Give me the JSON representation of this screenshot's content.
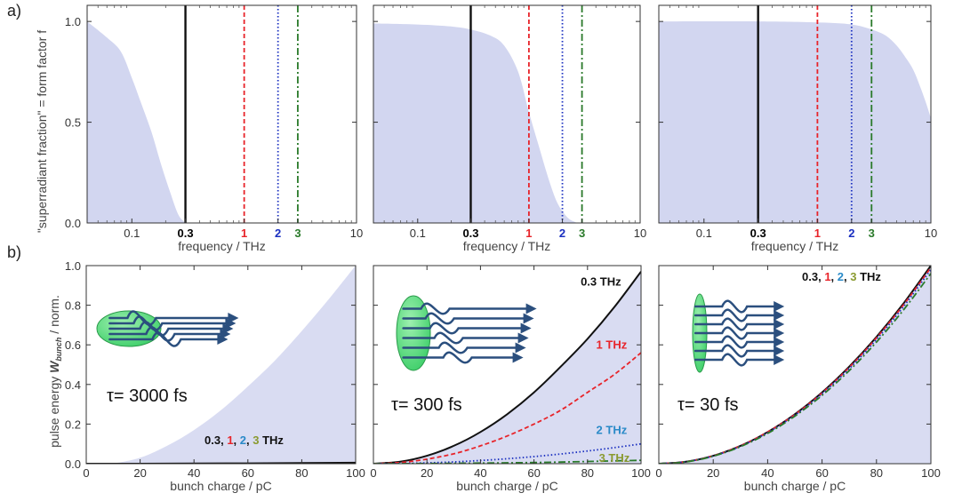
{
  "panel_labels": [
    "a)",
    "b)"
  ],
  "colors": {
    "fill": "#d2d6f0",
    "black": "#111111",
    "red": "#e8242a",
    "blue": "#1a2fc0",
    "green": "#2a7a2a",
    "text_blue": "#2a8ac8",
    "text_olive": "#8a9a30",
    "bunch": "#3fcf6a",
    "arrow": "#2b4f7e"
  },
  "chart_data": [
    {
      "id": "a1",
      "type": "area",
      "xlabel": "frequency / THz",
      "ylabel": "\"superradiant fraction\" = form factor f",
      "xscale": "log",
      "xlim": [
        0.04,
        10
      ],
      "ylim": [
        0,
        1.08
      ],
      "x_ticks": [
        "0.1",
        "0.3",
        "1",
        "2",
        "3",
        "10"
      ],
      "y_ticks": [
        "0.0",
        "0.5",
        "1.0"
      ],
      "form_factor": {
        "x": [
          0.04,
          0.06,
          0.08,
          0.1,
          0.12,
          0.15,
          0.18,
          0.22,
          0.26,
          0.3
        ],
        "y": [
          1.0,
          0.92,
          0.85,
          0.72,
          0.6,
          0.45,
          0.3,
          0.15,
          0.04,
          0.0
        ]
      },
      "vlines": [
        {
          "x": 0.3,
          "style": "solid",
          "color": "black"
        },
        {
          "x": 1,
          "style": "dashed",
          "color": "red"
        },
        {
          "x": 2,
          "style": "dotted",
          "color": "blue"
        },
        {
          "x": 3,
          "style": "dashdot",
          "color": "green"
        }
      ]
    },
    {
      "id": "a2",
      "type": "area",
      "xlabel": "frequency / THz",
      "xscale": "log",
      "xlim": [
        0.04,
        10
      ],
      "ylim": [
        0,
        1.08
      ],
      "x_ticks": [
        "0.1",
        "0.3",
        "1",
        "2",
        "3",
        "10"
      ],
      "form_factor": {
        "x": [
          0.04,
          0.1,
          0.2,
          0.3,
          0.45,
          0.6,
          0.8,
          1.0,
          1.2,
          1.5,
          1.8,
          2.2,
          2.6,
          3.0,
          10
        ],
        "y": [
          0.99,
          0.985,
          0.975,
          0.96,
          0.93,
          0.88,
          0.75,
          0.55,
          0.4,
          0.22,
          0.1,
          0.03,
          0.005,
          0.0,
          0.0
        ]
      },
      "vlines": [
        {
          "x": 0.3,
          "style": "solid",
          "color": "black"
        },
        {
          "x": 1,
          "style": "dashed",
          "color": "red"
        },
        {
          "x": 2,
          "style": "dotted",
          "color": "blue"
        },
        {
          "x": 3,
          "style": "dashdot",
          "color": "green"
        }
      ]
    },
    {
      "id": "a3",
      "type": "area",
      "xlabel": "frequency / THz",
      "xscale": "log",
      "xlim": [
        0.04,
        10
      ],
      "ylim": [
        0,
        1.08
      ],
      "x_ticks": [
        "0.1",
        "0.3",
        "1",
        "2",
        "3",
        "10"
      ],
      "form_factor": {
        "x": [
          0.04,
          0.3,
          1.0,
          2.0,
          3.0,
          4.0,
          5.0,
          6.0,
          7.0,
          8.0,
          9.0,
          10.0
        ],
        "y": [
          1.0,
          1.0,
          0.995,
          0.985,
          0.96,
          0.93,
          0.88,
          0.82,
          0.76,
          0.68,
          0.6,
          0.52
        ]
      },
      "vlines": [
        {
          "x": 0.3,
          "style": "solid",
          "color": "black"
        },
        {
          "x": 1,
          "style": "dashed",
          "color": "red"
        },
        {
          "x": 2,
          "style": "dotted",
          "color": "blue"
        },
        {
          "x": 3,
          "style": "dashdot",
          "color": "green"
        }
      ]
    },
    {
      "id": "b1",
      "type": "area",
      "xlabel": "bunch charge / pC",
      "ylabel_main": "pulse energy ",
      "ylabel_var": "W",
      "ylabel_sub": "bunch",
      "ylabel_end": " / norm.",
      "xlim": [
        0,
        100
      ],
      "ylim": [
        0,
        1.0
      ],
      "x_ticks": [
        "0",
        "20",
        "40",
        "60",
        "80",
        "100"
      ],
      "y_ticks": [
        "0.0",
        "0.2",
        "0.4",
        "0.6",
        "0.8",
        "1.0"
      ],
      "tau_label": "τ= 3000 fs",
      "series": [
        {
          "name": "0.3 THz",
          "x": [
            0,
            20,
            40,
            60,
            80,
            100
          ],
          "y": [
            0,
            0.0002,
            0.0008,
            0.0018,
            0.0032,
            0.005
          ],
          "style": "solid",
          "color": "black"
        }
      ],
      "fill_curve": {
        "x": [
          10,
          20,
          30,
          40,
          50,
          60,
          70,
          80,
          90,
          100
        ],
        "y": [
          0.0,
          0.03,
          0.09,
          0.17,
          0.27,
          0.39,
          0.52,
          0.67,
          0.83,
          1.0
        ]
      },
      "label": [
        {
          "text": "0.3",
          "color": "black"
        },
        {
          "text": ", ",
          "color": "black"
        },
        {
          "text": "1",
          "color": "red"
        },
        {
          "text": ", ",
          "color": "black"
        },
        {
          "text": "2",
          "color": "text_blue"
        },
        {
          "text": ", ",
          "color": "black"
        },
        {
          "text": "3",
          "color": "text_olive"
        },
        {
          "text": " THz",
          "color": "black"
        }
      ]
    },
    {
      "id": "b2",
      "type": "line",
      "xlabel": "bunch charge / pC",
      "xlim": [
        0,
        100
      ],
      "ylim": [
        0,
        1.0
      ],
      "x_ticks": [
        "0",
        "20",
        "40",
        "60",
        "80",
        "100"
      ],
      "tau_label": "τ= 300 fs",
      "fill_curve": {
        "x": [
          0,
          10,
          20,
          30,
          40,
          50,
          60,
          70,
          80,
          90,
          100
        ],
        "y": [
          0,
          0.01,
          0.04,
          0.09,
          0.16,
          0.25,
          0.36,
          0.49,
          0.63,
          0.79,
          0.97
        ]
      },
      "series": [
        {
          "name": "0.3 THz",
          "x": [
            0,
            10,
            20,
            30,
            40,
            50,
            60,
            70,
            80,
            90,
            100
          ],
          "y": [
            0,
            0.01,
            0.04,
            0.09,
            0.16,
            0.25,
            0.36,
            0.49,
            0.63,
            0.79,
            0.97
          ],
          "style": "solid",
          "color": "black"
        },
        {
          "name": "1 THz",
          "x": [
            0,
            10,
            20,
            30,
            40,
            50,
            60,
            70,
            80,
            90,
            100
          ],
          "y": [
            0,
            0.006,
            0.023,
            0.05,
            0.09,
            0.14,
            0.2,
            0.27,
            0.36,
            0.45,
            0.56
          ],
          "style": "dashed",
          "color": "red"
        },
        {
          "name": "2 THz",
          "x": [
            0,
            10,
            20,
            30,
            40,
            50,
            60,
            70,
            80,
            90,
            100
          ],
          "y": [
            0,
            0.001,
            0.004,
            0.009,
            0.016,
            0.025,
            0.036,
            0.049,
            0.064,
            0.081,
            0.1
          ],
          "style": "dotted",
          "color": "blue"
        },
        {
          "name": "3 THz",
          "x": [
            0,
            20,
            40,
            60,
            80,
            100
          ],
          "y": [
            0,
            0.001,
            0.003,
            0.006,
            0.011,
            0.017
          ],
          "style": "dashdot",
          "color": "green"
        }
      ],
      "annotations": [
        {
          "text": "0.3 THz",
          "color": "black",
          "x": 85,
          "y": 0.9
        },
        {
          "text": "1 THz",
          "color": "red",
          "x": 89,
          "y": 0.58
        },
        {
          "text": "2 THz",
          "color": "text_blue",
          "x": 89,
          "y": 0.15
        },
        {
          "text": "3 THz",
          "color": "text_olive",
          "x": 90,
          "y": 0.01
        }
      ]
    },
    {
      "id": "b3",
      "type": "line",
      "xlabel": "bunch charge / pC",
      "xlim": [
        0,
        100
      ],
      "ylim": [
        0,
        1.0
      ],
      "x_ticks": [
        "0",
        "20",
        "40",
        "60",
        "80",
        "100"
      ],
      "tau_label": "τ= 30 fs",
      "fill_curve": {
        "x": [
          0,
          10,
          20,
          30,
          40,
          50,
          60,
          70,
          80,
          90,
          100
        ],
        "y": [
          0,
          0.01,
          0.04,
          0.09,
          0.16,
          0.25,
          0.36,
          0.49,
          0.64,
          0.81,
          1.0
        ]
      },
      "series": [
        {
          "name": "0.3 THz",
          "x": [
            0,
            10,
            20,
            30,
            40,
            50,
            60,
            70,
            80,
            90,
            100
          ],
          "y": [
            0,
            0.01,
            0.04,
            0.09,
            0.16,
            0.25,
            0.36,
            0.49,
            0.64,
            0.81,
            1.0
          ],
          "style": "solid",
          "color": "black"
        },
        {
          "name": "1 THz",
          "x": [
            0,
            10,
            20,
            30,
            40,
            50,
            60,
            70,
            80,
            90,
            100
          ],
          "y": [
            0,
            0.01,
            0.04,
            0.09,
            0.16,
            0.248,
            0.357,
            0.486,
            0.635,
            0.803,
            0.99
          ],
          "style": "dashed",
          "color": "red"
        },
        {
          "name": "2 THz",
          "x": [
            0,
            10,
            20,
            30,
            40,
            50,
            60,
            70,
            80,
            90,
            100
          ],
          "y": [
            0,
            0.01,
            0.039,
            0.088,
            0.157,
            0.245,
            0.353,
            0.48,
            0.627,
            0.794,
            0.98
          ],
          "style": "dotted",
          "color": "blue"
        },
        {
          "name": "3 THz",
          "x": [
            0,
            10,
            20,
            30,
            40,
            50,
            60,
            70,
            80,
            90,
            100
          ],
          "y": [
            0,
            0.009,
            0.038,
            0.086,
            0.153,
            0.24,
            0.345,
            0.47,
            0.614,
            0.777,
            0.96
          ],
          "style": "dashdot",
          "color": "green"
        }
      ],
      "label": [
        {
          "text": "0.3",
          "color": "black"
        },
        {
          "text": ", ",
          "color": "black"
        },
        {
          "text": "1",
          "color": "red"
        },
        {
          "text": ", ",
          "color": "black"
        },
        {
          "text": "2",
          "color": "text_blue"
        },
        {
          "text": ", ",
          "color": "black"
        },
        {
          "text": "3",
          "color": "text_olive"
        },
        {
          "text": " THz",
          "color": "black"
        }
      ]
    }
  ]
}
